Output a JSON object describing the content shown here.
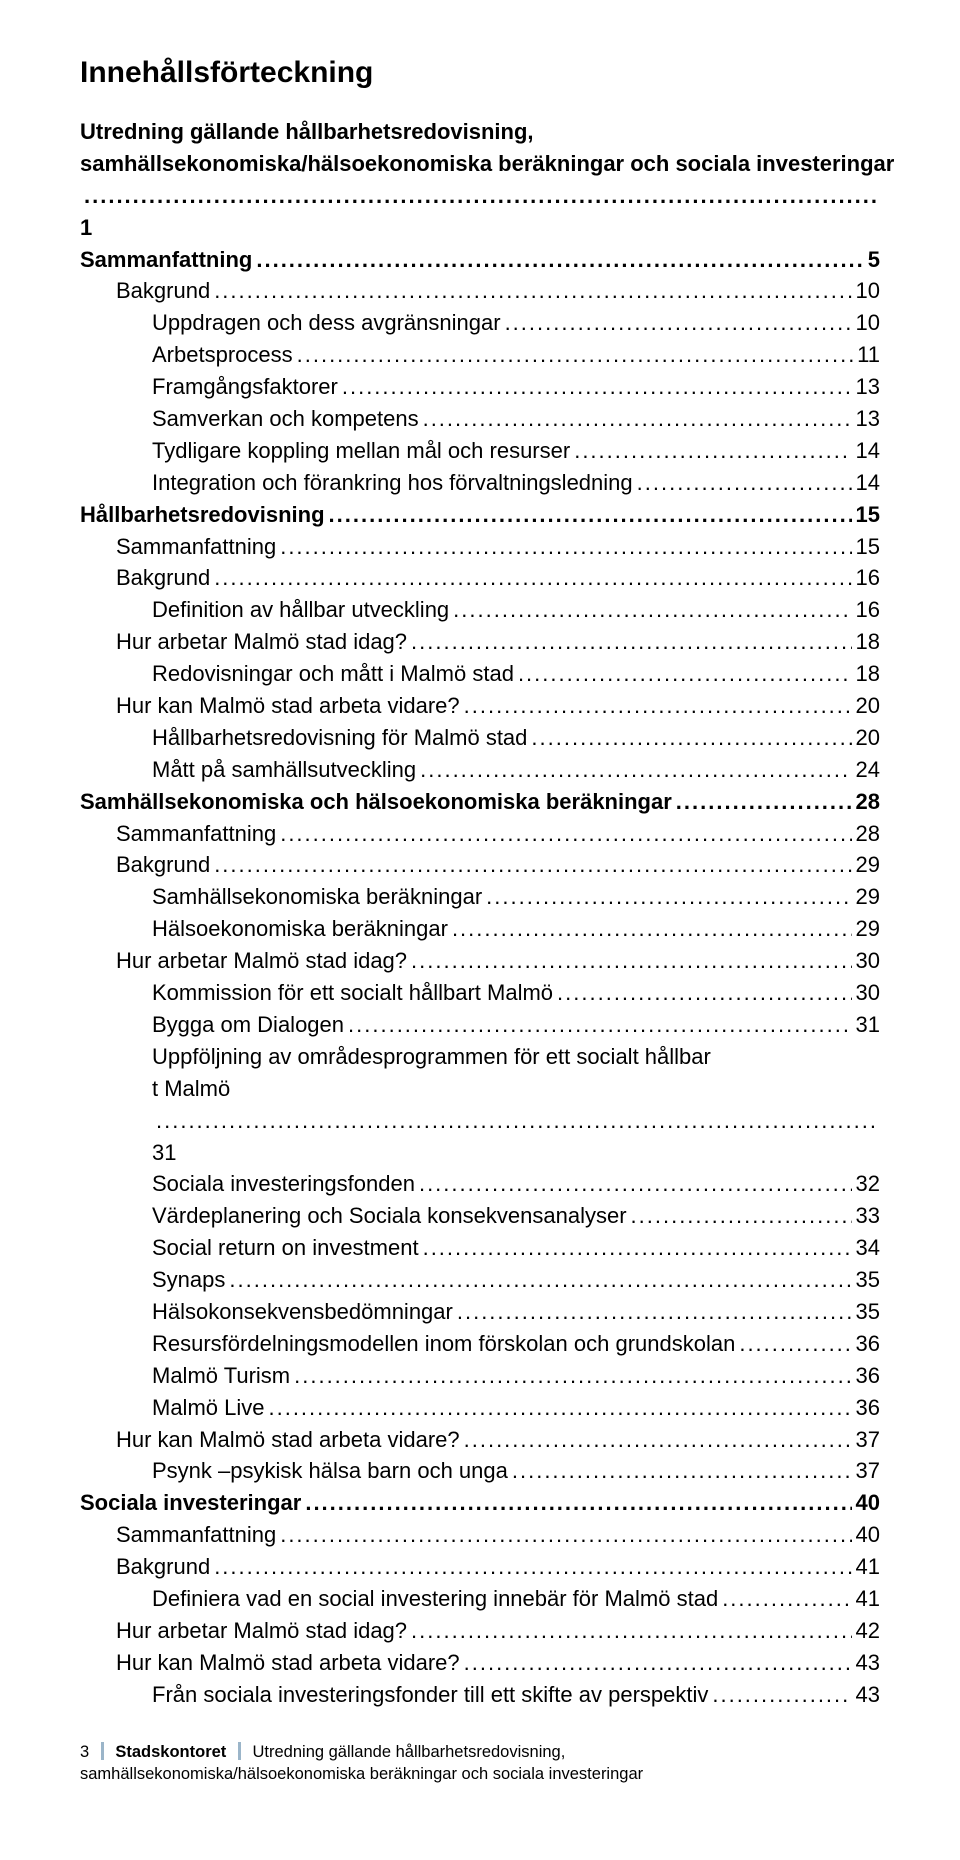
{
  "title": "Innehållsförteckning",
  "toc": [
    {
      "label": "Utredning gällande hållbarhetsredovisning, samhällsekonomiska/hälsoekonomiska beräkningar och sociala investeringar",
      "page": "1",
      "level": 0,
      "bold": true,
      "wrapAt": 43
    },
    {
      "label": "Sammanfattning",
      "page": "5",
      "level": 0,
      "bold": true
    },
    {
      "label": "Bakgrund",
      "page": "10",
      "level": 1,
      "bold": false
    },
    {
      "label": "Uppdragen och dess avgränsningar",
      "page": "10",
      "level": 2,
      "bold": false
    },
    {
      "label": "Arbetsprocess",
      "page": "11",
      "level": 2,
      "bold": false
    },
    {
      "label": "Framgångsfaktorer",
      "page": "13",
      "level": 2,
      "bold": false
    },
    {
      "label": "Samverkan och kompetens",
      "page": "13",
      "level": 2,
      "bold": false
    },
    {
      "label": "Tydligare koppling mellan mål och resurser",
      "page": "14",
      "level": 2,
      "bold": false
    },
    {
      "label": "Integration och förankring hos förvaltningsledning",
      "page": "14",
      "level": 2,
      "bold": false
    },
    {
      "label": "Hållbarhetsredovisning",
      "page": "15",
      "level": 0,
      "bold": true
    },
    {
      "label": "Sammanfattning",
      "page": "15",
      "level": 1,
      "bold": false
    },
    {
      "label": "Bakgrund",
      "page": "16",
      "level": 1,
      "bold": false
    },
    {
      "label": "Definition av hållbar utveckling",
      "page": "16",
      "level": 2,
      "bold": false
    },
    {
      "label": "Hur arbetar Malmö stad idag?",
      "page": "18",
      "level": 1,
      "bold": false
    },
    {
      "label": "Redovisningar och mått i Malmö stad",
      "page": "18",
      "level": 2,
      "bold": false
    },
    {
      "label": "Hur kan Malmö stad arbeta vidare?",
      "page": "20",
      "level": 1,
      "bold": false
    },
    {
      "label": "Hållbarhetsredovisning för Malmö stad",
      "page": "20",
      "level": 2,
      "bold": false
    },
    {
      "label": "Mått på samhällsutveckling",
      "page": "24",
      "level": 2,
      "bold": false
    },
    {
      "label": "Samhällsekonomiska och hälsoekonomiska beräkningar",
      "page": "28",
      "level": 0,
      "bold": true
    },
    {
      "label": "Sammanfattning",
      "page": "28",
      "level": 1,
      "bold": false
    },
    {
      "label": "Bakgrund",
      "page": "29",
      "level": 1,
      "bold": false
    },
    {
      "label": "Samhällsekonomiska beräkningar",
      "page": "29",
      "level": 2,
      "bold": false
    },
    {
      "label": "Hälsoekonomiska beräkningar",
      "page": "29",
      "level": 2,
      "bold": false
    },
    {
      "label": "Hur arbetar Malmö stad idag?",
      "page": "30",
      "level": 1,
      "bold": false
    },
    {
      "label": "Kommission för ett socialt hållbart Malmö",
      "page": "30",
      "level": 2,
      "bold": false
    },
    {
      "label": "Bygga om Dialogen",
      "page": "31",
      "level": 2,
      "bold": false
    },
    {
      "label": "Uppföljning av områdesprogrammen för ett socialt hållbart Malmö",
      "page": "31",
      "level": 2,
      "bold": false,
      "wrapAt": 56
    },
    {
      "label": "Sociala investeringsfonden",
      "page": "32",
      "level": 2,
      "bold": false
    },
    {
      "label": "Värdeplanering och Sociala konsekvensanalyser",
      "page": "33",
      "level": 2,
      "bold": false
    },
    {
      "label": "Social return on investment",
      "page": "34",
      "level": 2,
      "bold": false
    },
    {
      "label": "Synaps",
      "page": "35",
      "level": 2,
      "bold": false
    },
    {
      "label": "Hälsokonsekvensbedömningar",
      "page": "35",
      "level": 2,
      "bold": false
    },
    {
      "label": "Resursfördelningsmodellen inom förskolan och grundskolan",
      "page": "36",
      "level": 2,
      "bold": false
    },
    {
      "label": "Malmö Turism",
      "page": "36",
      "level": 2,
      "bold": false
    },
    {
      "label": "Malmö Live",
      "page": "36",
      "level": 2,
      "bold": false
    },
    {
      "label": "Hur kan Malmö stad arbeta vidare?",
      "page": "37",
      "level": 1,
      "bold": false
    },
    {
      "label": "Psynk –psykisk hälsa barn och unga",
      "page": "37",
      "level": 2,
      "bold": false
    },
    {
      "label": "Sociala investeringar",
      "page": "40",
      "level": 0,
      "bold": true
    },
    {
      "label": "Sammanfattning",
      "page": "40",
      "level": 1,
      "bold": false
    },
    {
      "label": "Bakgrund",
      "page": "41",
      "level": 1,
      "bold": false
    },
    {
      "label": "Definiera vad en social investering innebär för Malmö stad",
      "page": "41",
      "level": 2,
      "bold": false
    },
    {
      "label": "Hur arbetar Malmö stad idag?",
      "page": "42",
      "level": 1,
      "bold": false
    },
    {
      "label": "Hur kan Malmö stad arbeta vidare?",
      "page": "43",
      "level": 1,
      "bold": false
    },
    {
      "label": "Från sociala investeringsfonder till ett skifte av perspektiv",
      "page": "43",
      "level": 2,
      "bold": false
    }
  ],
  "footer": {
    "pageNumber": "3",
    "dept": "Stadskontoret",
    "docTitle1": "Utredning gällande hållbarhetsredovisning,",
    "docTitle2": "samhällsekonomiska/hälsoekonomiska beräkningar och sociala investeringar"
  }
}
